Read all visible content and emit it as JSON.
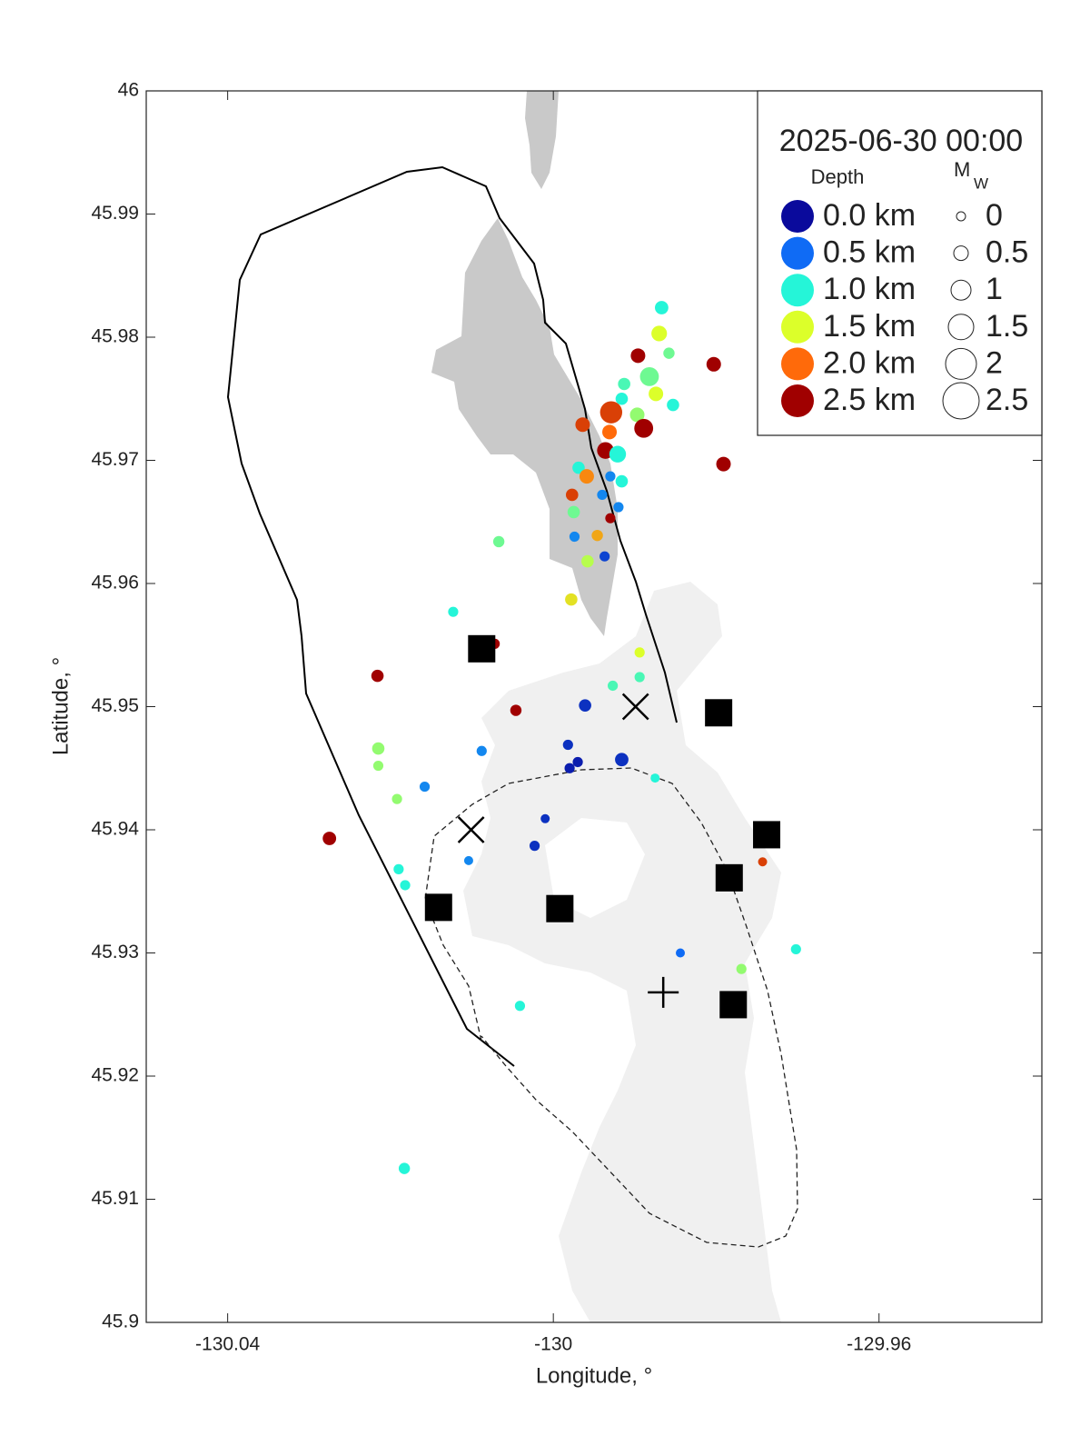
{
  "chart_data": {
    "type": "scatter",
    "xlabel": "Longitude, °",
    "ylabel": "Latitude, °",
    "legend_title": "2025-06-30 00:00",
    "color_label": "Depth",
    "size_label": "M",
    "size_label_sub": "W",
    "xlim": [
      -130.05,
      -129.94
    ],
    "xticks": [
      -130.04,
      -130,
      -129.96
    ],
    "ylim": [
      45.9,
      46
    ],
    "yticks": [
      45.9,
      45.91,
      45.92,
      45.93,
      45.94,
      45.95,
      45.96,
      45.97,
      45.98,
      45.99,
      46
    ],
    "clim": [
      0,
      2.5
    ],
    "colormap": [
      "#0a0a9c",
      "#0f6bf5",
      "#25f5d8",
      "#dcff2a",
      "#ff6a0a",
      "#a00000"
    ],
    "depth_legend": [
      {
        "value": 0,
        "label": "0.0 km"
      },
      {
        "value": 0.5,
        "label": "0.5 km"
      },
      {
        "value": 1,
        "label": "1.0 km"
      },
      {
        "value": 1.5,
        "label": "1.5 km"
      },
      {
        "value": 2,
        "label": "2.0 km"
      },
      {
        "value": 2.5,
        "label": "2.5 km"
      }
    ],
    "size_legend": [
      0,
      0.5,
      1,
      1.5,
      2,
      2.5
    ],
    "x": [
      -129.9867,
      -129.987,
      -129.9858,
      -129.9896,
      -129.9803,
      -129.9882,
      -129.9913,
      -129.9874,
      -129.9916,
      -129.9853,
      -129.9929,
      -129.9897,
      -129.9964,
      -129.9889,
      -129.9931,
      -129.9936,
      -129.9921,
      -129.9791,
      -129.9969,
      -129.9959,
      -129.993,
      -129.9916,
      -129.9977,
      -129.994,
      -129.992,
      -129.9975,
      -129.993,
      -130.0067,
      -129.9946,
      -129.9974,
      -129.9937,
      -129.9958,
      -129.9978,
      -130.0123,
      -130.0072,
      -129.9894,
      -129.9927,
      -129.9894,
      -130.0216,
      -130.0046,
      -129.9961,
      -129.9982,
      -129.997,
      -129.998,
      -129.9916,
      -130.0088,
      -130.0215,
      -130.0215,
      -130.0158,
      -130.0192,
      -129.9875,
      -130.001,
      -130.0023,
      -130.0104,
      -130.0275,
      -130.019,
      -130.0182,
      -129.9743,
      -129.9844,
      -129.9702,
      -129.9769,
      -130.0041,
      -130.0183
    ],
    "y": [
      45.9824,
      45.9803,
      45.9787,
      45.9785,
      45.9778,
      45.9768,
      45.9762,
      45.9754,
      45.975,
      45.9745,
      45.9739,
      45.9737,
      45.9729,
      45.9726,
      45.9723,
      45.9708,
      45.9705,
      45.9697,
      45.9694,
      45.9687,
      45.9687,
      45.9683,
      45.9672,
      45.9672,
      45.9662,
      45.9658,
      45.9653,
      45.9634,
      45.9639,
      45.9638,
      45.9622,
      45.9618,
      45.9587,
      45.9577,
      45.9551,
      45.9544,
      45.9517,
      45.9524,
      45.9525,
      45.9497,
      45.9501,
      45.9469,
      45.9455,
      45.945,
      45.9457,
      45.9464,
      45.9466,
      45.9452,
      45.9435,
      45.9425,
      45.9442,
      45.9409,
      45.9387,
      45.9375,
      45.9393,
      45.9368,
      45.9355,
      45.9374,
      45.93,
      45.9303,
      45.9287,
      45.9257,
      45.9125
    ],
    "depth": [
      1.0,
      1.5,
      1.2,
      2.5,
      2.5,
      1.2,
      1.1,
      1.5,
      1.0,
      1.0,
      2.2,
      1.3,
      2.2,
      2.5,
      2.0,
      2.5,
      1.0,
      2.5,
      1.0,
      1.9,
      0.6,
      1.0,
      2.2,
      0.6,
      0.6,
      1.2,
      2.5,
      1.2,
      1.8,
      0.6,
      0.3,
      1.4,
      1.6,
      1.0,
      2.5,
      1.5,
      1.1,
      1.1,
      2.5,
      2.5,
      0.2,
      0.2,
      0.1,
      0.1,
      0.2,
      0.6,
      1.3,
      1.3,
      0.6,
      1.3,
      1.0,
      0.2,
      0.2,
      0.6,
      2.5,
      1.0,
      1.0,
      2.2,
      0.5,
      1.0,
      1.3,
      1.0,
      1.0
    ],
    "magnitude": [
      0.4,
      0.6,
      0.2,
      0.5,
      0.5,
      0.9,
      0.3,
      0.5,
      0.3,
      0.3,
      1.2,
      0.5,
      0.5,
      0.9,
      0.5,
      0.7,
      0.7,
      0.5,
      0.3,
      0.5,
      0.1,
      0.3,
      0.3,
      0.1,
      0.1,
      0.3,
      0.1,
      0.2,
      0.2,
      0.1,
      0.1,
      0.3,
      0.3,
      0.1,
      0.1,
      0.1,
      0.1,
      0.1,
      0.3,
      0.2,
      0.3,
      0.1,
      0.1,
      0.1,
      0.4,
      0.1,
      0.3,
      0.1,
      0.1,
      0.1,
      0.0,
      0.0,
      0.1,
      0.0,
      0.4,
      0.1,
      0.1,
      0.0,
      0.0,
      0.1,
      0.1,
      0.1,
      0.2
    ],
    "squares": {
      "x": [
        -130.0088,
        -129.9797,
        -129.9738,
        -129.9784,
        -130.0141,
        -129.9992,
        -129.9779
      ],
      "y": [
        45.9547,
        45.9495,
        45.9396,
        45.9361,
        45.9337,
        45.9336,
        45.9258
      ]
    },
    "crosses": {
      "x": [
        -129.9899,
        -130.0101
      ],
      "y": [
        45.95,
        45.94
      ]
    },
    "plus": {
      "x": [
        -129.9865
      ],
      "y": [
        45.9268
      ]
    }
  }
}
